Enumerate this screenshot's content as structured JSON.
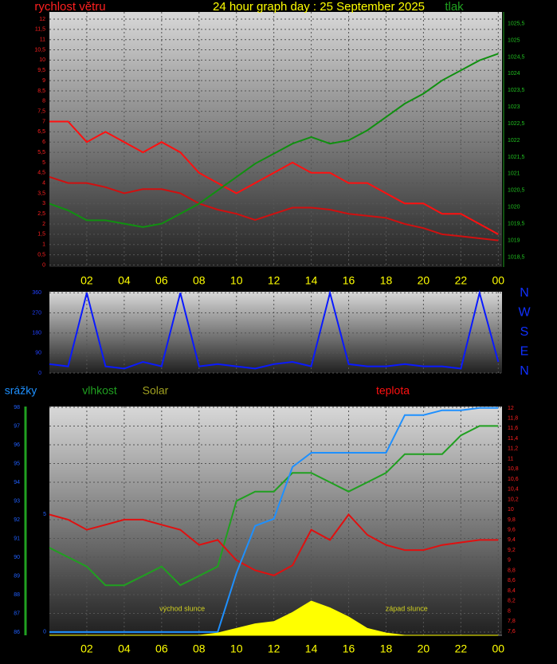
{
  "chart_data": [
    {
      "type": "line",
      "title": "24 hour graph day : 25 September 2025",
      "ylabel": "rychlost větru",
      "y2label": "tlak",
      "title_color": "#ffff00",
      "ylabel_color": "#ff2020",
      "y2label_color": "#20a020",
      "axis_colors": {
        "y": "#ff2020",
        "y2": "#20c020"
      },
      "x": [
        0,
        1,
        2,
        3,
        4,
        5,
        6,
        7,
        8,
        9,
        10,
        11,
        12,
        13,
        14,
        15,
        16,
        17,
        18,
        19,
        20,
        21,
        22,
        23,
        24
      ],
      "xlim": [
        0,
        24.2
      ],
      "xticks": [
        {
          "value": 2,
          "label": "02"
        },
        {
          "value": 4,
          "label": "04"
        },
        {
          "value": 6,
          "label": "06"
        },
        {
          "value": 8,
          "label": "08"
        },
        10,
        12,
        14,
        16,
        18,
        20,
        22,
        {
          "value": 24,
          "label": "00"
        }
      ],
      "ylim": [
        -0.1,
        12.35
      ],
      "yticks": [
        0,
        {
          "value": 0.5,
          "label": "0,5"
        },
        1,
        {
          "value": 1.5,
          "label": "1,5"
        },
        2,
        {
          "value": 2.5,
          "label": "2,5"
        },
        3,
        {
          "value": 3.5,
          "label": "3,5"
        },
        4,
        {
          "value": 4.5,
          "label": "4,5"
        },
        5,
        {
          "value": 5.5,
          "label": "5,5"
        },
        6,
        {
          "value": 6.5,
          "label": "6,5"
        },
        7,
        {
          "value": 7.5,
          "label": "7,5"
        },
        8,
        {
          "value": 8.5,
          "label": "8,5"
        },
        9,
        {
          "value": 9.5,
          "label": "9,5"
        },
        10,
        {
          "value": 10.5,
          "label": "10,5"
        },
        11,
        {
          "value": 11.5,
          "label": "11,5"
        },
        12
      ],
      "y2lim": [
        1018.2,
        1025.85
      ],
      "y2ticks": [
        {
          "value": 1018.5,
          "label": "1018,5"
        },
        1019,
        {
          "value": 1019.5,
          "label": "1019,5"
        },
        1020,
        {
          "value": 1020.5,
          "label": "1020,5"
        },
        1021,
        {
          "value": 1021.5,
          "label": "1021,5"
        },
        1022,
        {
          "value": 1022.5,
          "label": "1022,5"
        },
        1023,
        {
          "value": 1023.5,
          "label": "1023,5"
        },
        1024,
        {
          "value": 1024.5,
          "label": "1024,5"
        },
        1025,
        {
          "value": 1025.5,
          "label": "1025,5"
        }
      ],
      "grid": true,
      "series": [
        {
          "color": "#ff1010",
          "axis": "y",
          "values": [
            7,
            7,
            6,
            6.5,
            6,
            5.5,
            6,
            5.5,
            4.5,
            4,
            3.5,
            4,
            4.5,
            5,
            4.5,
            4.5,
            4,
            4,
            3.5,
            3,
            3,
            2.5,
            2.5,
            2,
            1.5
          ]
        },
        {
          "color": "#d01010",
          "axis": "y",
          "values": [
            4.3,
            4,
            4,
            3.8,
            3.5,
            3.7,
            3.7,
            3.5,
            3,
            2.7,
            2.5,
            2.2,
            2.5,
            2.8,
            2.8,
            2.7,
            2.5,
            2.4,
            2.3,
            2,
            1.8,
            1.5,
            1.4,
            1.3,
            1.2
          ]
        },
        {
          "color": "#109010",
          "axis": "y2",
          "values": [
            1020.1,
            1019.9,
            1019.6,
            1019.6,
            1019.5,
            1019.4,
            1019.5,
            1019.8,
            1020.1,
            1020.5,
            1020.9,
            1021.3,
            1021.6,
            1021.9,
            1022.1,
            1021.9,
            1022,
            1022.3,
            1022.7,
            1023.1,
            1023.4,
            1023.8,
            1024.1,
            1024.4,
            1024.6
          ]
        }
      ]
    },
    {
      "type": "line",
      "direction_labels": [
        "N",
        "W",
        "S",
        "E",
        "N"
      ],
      "direction_color": "#1030ff",
      "axis_colors": {
        "y": "#2040ff"
      },
      "x": [
        0,
        1,
        2,
        3,
        4,
        5,
        6,
        7,
        8,
        9,
        10,
        11,
        12,
        13,
        14,
        15,
        16,
        17,
        18,
        19,
        20,
        21,
        22,
        23,
        24
      ],
      "xlim": [
        0,
        24.2
      ],
      "ylim": [
        0,
        365
      ],
      "yticks": [
        0,
        90,
        180,
        270,
        360
      ],
      "grid": true,
      "series": [
        {
          "color": "#0a1aff",
          "axis": "y",
          "values": [
            40,
            30,
            360,
            30,
            20,
            50,
            30,
            360,
            30,
            40,
            30,
            20,
            40,
            50,
            30,
            360,
            40,
            30,
            30,
            40,
            30,
            30,
            20,
            360,
            50
          ]
        }
      ]
    },
    {
      "type": "line",
      "labels": [
        "srážky",
        "vlhkost",
        "Solar",
        "teplota"
      ],
      "label_colors": [
        "#1e90ff",
        "#20a020",
        "#a0a020",
        "#ff1010"
      ],
      "axis_colors": {
        "y": "#2060ff",
        "y2": "#ff2020",
        "y3": "#2060ff"
      },
      "x": [
        0,
        1,
        2,
        3,
        4,
        5,
        6,
        7,
        8,
        9,
        10,
        11,
        12,
        13,
        14,
        15,
        16,
        17,
        18,
        19,
        20,
        21,
        22,
        23,
        24
      ],
      "xlim": [
        0,
        24.2
      ],
      "xticks": [
        {
          "value": 2,
          "label": "02"
        },
        {
          "value": 4,
          "label": "04"
        },
        {
          "value": 6,
          "label": "06"
        },
        {
          "value": 8,
          "label": "08"
        },
        10,
        12,
        14,
        16,
        18,
        20,
        22,
        {
          "value": 24,
          "label": "00"
        }
      ],
      "ylim": [
        85.83,
        98.04
      ],
      "yticks": [
        86,
        87,
        88,
        89,
        90,
        91,
        92,
        93,
        94,
        95,
        96,
        97,
        98
      ],
      "y2lim": [
        7.52,
        12.03
      ],
      "y2ticks": [
        {
          "value": 7.6,
          "label": "7,6"
        },
        {
          "value": 7.8,
          "label": "7,8"
        },
        8,
        {
          "value": 8.2,
          "label": "8,2"
        },
        {
          "value": 8.4,
          "label": "8,4"
        },
        {
          "value": 8.6,
          "label": "8,6"
        },
        {
          "value": 8.8,
          "label": "8,8"
        },
        9,
        {
          "value": 9.2,
          "label": "9,2"
        },
        {
          "value": 9.4,
          "label": "9,4"
        },
        {
          "value": 9.6,
          "label": "9,6"
        },
        {
          "value": 9.8,
          "label": "9,8"
        },
        10,
        {
          "value": 10.2,
          "label": "10,2"
        },
        {
          "value": 10.4,
          "label": "10,4"
        },
        {
          "value": 10.6,
          "label": "10,6"
        },
        {
          "value": 10.8,
          "label": "10,8"
        },
        11,
        {
          "value": 11.2,
          "label": "11,2"
        },
        {
          "value": 11.4,
          "label": "11,4"
        },
        {
          "value": 11.6,
          "label": "11,6"
        },
        {
          "value": 11.8,
          "label": "11,8"
        },
        12
      ],
      "y3lim": [
        -0.14,
        9.56
      ],
      "y3ticks": [
        0,
        5
      ],
      "y4lim": [
        0,
        100
      ],
      "grid": true,
      "annotations": [
        {
          "text": "východ slunce",
          "x": 7.1
        },
        {
          "text": "západ slunce",
          "x": 19.1
        }
      ],
      "annotation_color": "#d0d020",
      "series": [
        {
          "color": "#20a020",
          "axis": "y",
          "values": [
            90.5,
            90,
            89.5,
            88.5,
            88.5,
            89,
            89.5,
            88.5,
            89,
            89.5,
            93,
            93.5,
            93.5,
            94.5,
            94.5,
            94,
            93.5,
            94,
            94.5,
            95.5,
            95.5,
            95.5,
            96.5,
            97,
            97
          ]
        },
        {
          "color": "#e01010",
          "axis": "y2",
          "values": [
            9.9,
            9.8,
            9.6,
            9.7,
            9.8,
            9.8,
            9.7,
            9.6,
            9.3,
            9.4,
            9,
            8.8,
            8.7,
            8.9,
            9.6,
            9.4,
            9.9,
            9.5,
            9.3,
            9.2,
            9.2,
            9.3,
            9.35,
            9.4,
            9.4
          ]
        },
        {
          "color": "#1e90ff",
          "axis": "y3",
          "values": [
            0,
            0,
            0,
            0,
            0,
            0,
            0,
            0,
            0,
            0,
            2.5,
            4.5,
            4.8,
            7,
            7.6,
            7.6,
            7.6,
            7.6,
            7.6,
            9.2,
            9.2,
            9.4,
            9.4,
            9.5,
            9.5
          ]
        },
        {
          "color": "#ffff00",
          "axis": "y4",
          "area": true,
          "values": [
            0,
            0,
            0,
            0,
            0,
            0,
            0,
            0,
            0,
            1,
            3,
            5,
            6,
            10,
            15,
            12,
            8,
            3,
            1,
            0,
            0,
            0,
            0,
            0,
            0
          ]
        }
      ]
    }
  ]
}
